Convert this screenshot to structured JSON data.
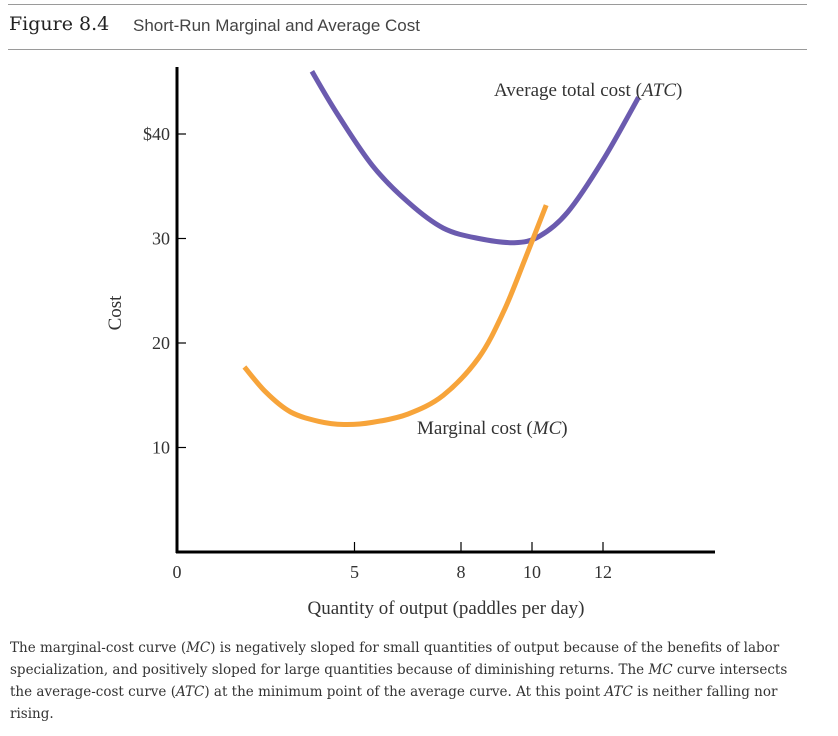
{
  "figure": {
    "label": "Figure 8.4",
    "title": "Short-Run Marginal and Average Cost"
  },
  "colors": {
    "atc": "#6B5BAF",
    "mc": "#F7A43A",
    "axis": "#000000"
  },
  "chart_data": {
    "type": "line",
    "title": "Short-Run Marginal and Average Cost",
    "xlabel": "Quantity of output (paddles per day)",
    "ylabel": "Cost",
    "xlim": [
      0,
      15
    ],
    "ylim": [
      0,
      47
    ],
    "x_ticks": [
      0,
      5,
      8,
      10,
      12
    ],
    "x_tick_labels": [
      "0",
      "5",
      "8",
      "10",
      "12"
    ],
    "y_ticks": [
      40,
      30,
      20,
      10
    ],
    "y_tick_labels": [
      "$40",
      "30",
      "20",
      "10"
    ],
    "grid": false,
    "series": [
      {
        "name": "Average total cost (ATC)",
        "color": "#6B5BAF",
        "points": [
          [
            3.8,
            46.0
          ],
          [
            4.5,
            42.0
          ],
          [
            5.5,
            37.0
          ],
          [
            6.5,
            33.5
          ],
          [
            7.5,
            31.0
          ],
          [
            8.5,
            30.0
          ],
          [
            9.5,
            29.6
          ],
          [
            10.2,
            30.2
          ],
          [
            11.0,
            32.5
          ],
          [
            12.0,
            37.5
          ],
          [
            13.0,
            43.5
          ]
        ]
      },
      {
        "name": "Marginal cost (MC)",
        "color": "#F7A43A",
        "points": [
          [
            1.9,
            17.7
          ],
          [
            2.5,
            15.3
          ],
          [
            3.2,
            13.4
          ],
          [
            4.0,
            12.5
          ],
          [
            4.7,
            12.2
          ],
          [
            5.5,
            12.4
          ],
          [
            6.5,
            13.2
          ],
          [
            7.5,
            15.0
          ],
          [
            8.5,
            18.6
          ],
          [
            9.2,
            23.0
          ],
          [
            9.8,
            28.0
          ],
          [
            10.4,
            33.2
          ]
        ]
      }
    ]
  },
  "labels": {
    "atc_prefix": "Average total cost (",
    "atc_abbr": "ATC",
    "atc_suffix": ")",
    "mc_prefix": "Marginal cost (",
    "mc_abbr": "MC",
    "mc_suffix": ")"
  },
  "caption": {
    "t1": "The marginal-cost curve (",
    "t2": "MC",
    "t3": ") is negatively sloped for small quantities of output because of the benefits of labor specialization, and positively sloped for large quantities because of diminishing returns. The ",
    "t4": "MC",
    "t5": " curve intersects the average-cost curve (",
    "t6": "ATC",
    "t7": ") at the minimum point of the average curve. At this point ",
    "t8": "ATC",
    "t9": " is neither falling nor rising."
  }
}
